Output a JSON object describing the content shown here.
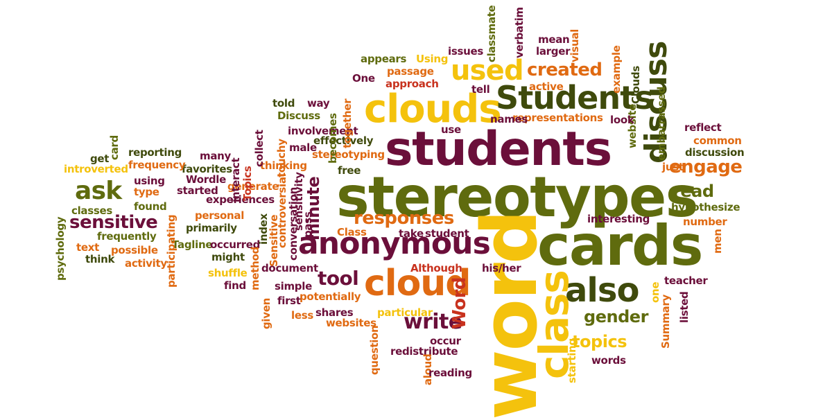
{
  "colors": {
    "maroon": "#6b0f3a",
    "olive": "#5f6b0e",
    "green": "#3f4a0c",
    "orange": "#e06a12",
    "gold": "#f4c20d",
    "red": "#c8321e"
  },
  "words": [
    {
      "text": "students",
      "c": "maroon"
    },
    {
      "text": "stereotypes",
      "c": "olive"
    },
    {
      "text": "word",
      "c": "gold"
    },
    {
      "text": "cards",
      "c": "olive"
    },
    {
      "text": "clouds",
      "c": "gold"
    },
    {
      "text": "Students",
      "c": "green"
    },
    {
      "text": "anonymous",
      "c": "maroon"
    },
    {
      "text": "cloud",
      "c": "orange"
    },
    {
      "text": "also",
      "c": "green"
    },
    {
      "text": "class",
      "c": "gold"
    },
    {
      "text": "discuss",
      "c": "green"
    },
    {
      "text": "used",
      "c": "gold"
    },
    {
      "text": "created",
      "c": "orange"
    },
    {
      "text": "ask",
      "c": "olive"
    },
    {
      "text": "sensitive",
      "c": "maroon"
    },
    {
      "text": "engage",
      "c": "orange"
    },
    {
      "text": "read",
      "c": "olive"
    },
    {
      "text": "responses",
      "c": "orange"
    },
    {
      "text": "minute",
      "c": "maroon"
    },
    {
      "text": "gender",
      "c": "olive"
    },
    {
      "text": "topics",
      "c": "gold"
    },
    {
      "text": "write",
      "c": "maroon"
    },
    {
      "text": "tool",
      "c": "maroon"
    },
    {
      "text": "Word",
      "c": "red"
    },
    {
      "text": "hypothesize",
      "c": "olive"
    },
    {
      "text": "representations",
      "c": "orange"
    },
    {
      "text": "involvement",
      "c": "maroon"
    },
    {
      "text": "stereotyping",
      "c": "orange"
    },
    {
      "text": "effectively",
      "c": "green"
    },
    {
      "text": "thinking",
      "c": "orange"
    },
    {
      "text": "generate",
      "c": "orange"
    },
    {
      "text": "experiences",
      "c": "maroon"
    },
    {
      "text": "personal",
      "c": "orange"
    },
    {
      "text": "primarily",
      "c": "green"
    },
    {
      "text": "Tagline",
      "c": "olive"
    },
    {
      "text": "occurred",
      "c": "maroon"
    },
    {
      "text": "might",
      "c": "green"
    },
    {
      "text": "favorites",
      "c": "green"
    },
    {
      "text": "Wordle",
      "c": "maroon"
    },
    {
      "text": "started",
      "c": "maroon"
    },
    {
      "text": "reporting",
      "c": "green"
    },
    {
      "text": "frequency",
      "c": "orange"
    },
    {
      "text": "using",
      "c": "maroon"
    },
    {
      "text": "type",
      "c": "orange"
    },
    {
      "text": "found",
      "c": "olive"
    },
    {
      "text": "introverted",
      "c": "gold"
    },
    {
      "text": "get",
      "c": "green"
    },
    {
      "text": "card",
      "c": "olive"
    },
    {
      "text": "classes",
      "c": "olive"
    },
    {
      "text": "psychology",
      "c": "olive"
    },
    {
      "text": "frequently",
      "c": "olive"
    },
    {
      "text": "text",
      "c": "orange"
    },
    {
      "text": "possible",
      "c": "orange"
    },
    {
      "text": "think",
      "c": "green"
    },
    {
      "text": "activity",
      "c": "orange"
    },
    {
      "text": "many",
      "c": "maroon"
    },
    {
      "text": "interact",
      "c": "maroon"
    },
    {
      "text": "collect",
      "c": "maroon"
    },
    {
      "text": "Topics",
      "c": "red"
    },
    {
      "text": "touchy",
      "c": "orange"
    },
    {
      "text": "male",
      "c": "maroon"
    },
    {
      "text": "free",
      "c": "green"
    },
    {
      "text": "Discuss",
      "c": "olive"
    },
    {
      "text": "told",
      "c": "green"
    },
    {
      "text": "way",
      "c": "maroon"
    },
    {
      "text": "becomes",
      "c": "olive"
    },
    {
      "text": "together",
      "c": "orange"
    },
    {
      "text": "appears",
      "c": "olive"
    },
    {
      "text": "Using",
      "c": "gold"
    },
    {
      "text": "issues",
      "c": "maroon"
    },
    {
      "text": "classmate",
      "c": "olive"
    },
    {
      "text": "verbatim",
      "c": "maroon"
    },
    {
      "text": "mean",
      "c": "maroon"
    },
    {
      "text": "visual",
      "c": "orange"
    },
    {
      "text": "larger",
      "c": "maroon"
    },
    {
      "text": "One",
      "c": "maroon"
    },
    {
      "text": "passage",
      "c": "orange"
    },
    {
      "text": "approach",
      "c": "red"
    },
    {
      "text": "tell",
      "c": "maroon"
    },
    {
      "text": "active",
      "c": "orange"
    },
    {
      "text": "example",
      "c": "orange"
    },
    {
      "text": "Clouds",
      "c": "green"
    },
    {
      "text": "website",
      "c": "olive"
    },
    {
      "text": "embarrassed",
      "c": "olive"
    },
    {
      "text": "look",
      "c": "maroon"
    },
    {
      "text": "names",
      "c": "maroon"
    },
    {
      "text": "use",
      "c": "maroon"
    },
    {
      "text": "reflect",
      "c": "maroon"
    },
    {
      "text": "common",
      "c": "orange"
    },
    {
      "text": "discussion",
      "c": "green"
    },
    {
      "text": "just",
      "c": "orange"
    },
    {
      "text": "interesting",
      "c": "maroon"
    },
    {
      "text": "number",
      "c": "orange"
    },
    {
      "text": "men",
      "c": "orange"
    },
    {
      "text": "Class",
      "c": "orange"
    },
    {
      "text": "take",
      "c": "maroon"
    },
    {
      "text": "student",
      "c": "maroon"
    },
    {
      "text": "Although",
      "c": "red"
    },
    {
      "text": "his/her",
      "c": "maroon"
    },
    {
      "text": "teacher",
      "c": "maroon"
    },
    {
      "text": "listed",
      "c": "maroon"
    },
    {
      "text": "Summary",
      "c": "orange"
    },
    {
      "text": "one",
      "c": "gold"
    },
    {
      "text": "index",
      "c": "green"
    },
    {
      "text": "Sensitive",
      "c": "orange"
    },
    {
      "text": "controversial",
      "c": "orange"
    },
    {
      "text": "conversation",
      "c": "maroon"
    },
    {
      "text": "sensitivity",
      "c": "maroon"
    },
    {
      "text": "pass",
      "c": "maroon"
    },
    {
      "text": "document",
      "c": "maroon"
    },
    {
      "text": "shuffle",
      "c": "gold"
    },
    {
      "text": "method",
      "c": "orange"
    },
    {
      "text": "find",
      "c": "maroon"
    },
    {
      "text": "given",
      "c": "orange"
    },
    {
      "text": "simple",
      "c": "maroon"
    },
    {
      "text": "first",
      "c": "maroon"
    },
    {
      "text": "potentially",
      "c": "orange"
    },
    {
      "text": "less",
      "c": "orange"
    },
    {
      "text": "shares",
      "c": "maroon"
    },
    {
      "text": "websites",
      "c": "orange"
    },
    {
      "text": "particular",
      "c": "gold"
    },
    {
      "text": "question",
      "c": "orange"
    },
    {
      "text": "occur",
      "c": "maroon"
    },
    {
      "text": "redistribute",
      "c": "maroon"
    },
    {
      "text": "aloud",
      "c": "orange"
    },
    {
      "text": "reading",
      "c": "maroon"
    },
    {
      "text": "starting",
      "c": "gold"
    },
    {
      "text": "words",
      "c": "maroon"
    },
    {
      "text": "participating",
      "c": "orange"
    }
  ]
}
